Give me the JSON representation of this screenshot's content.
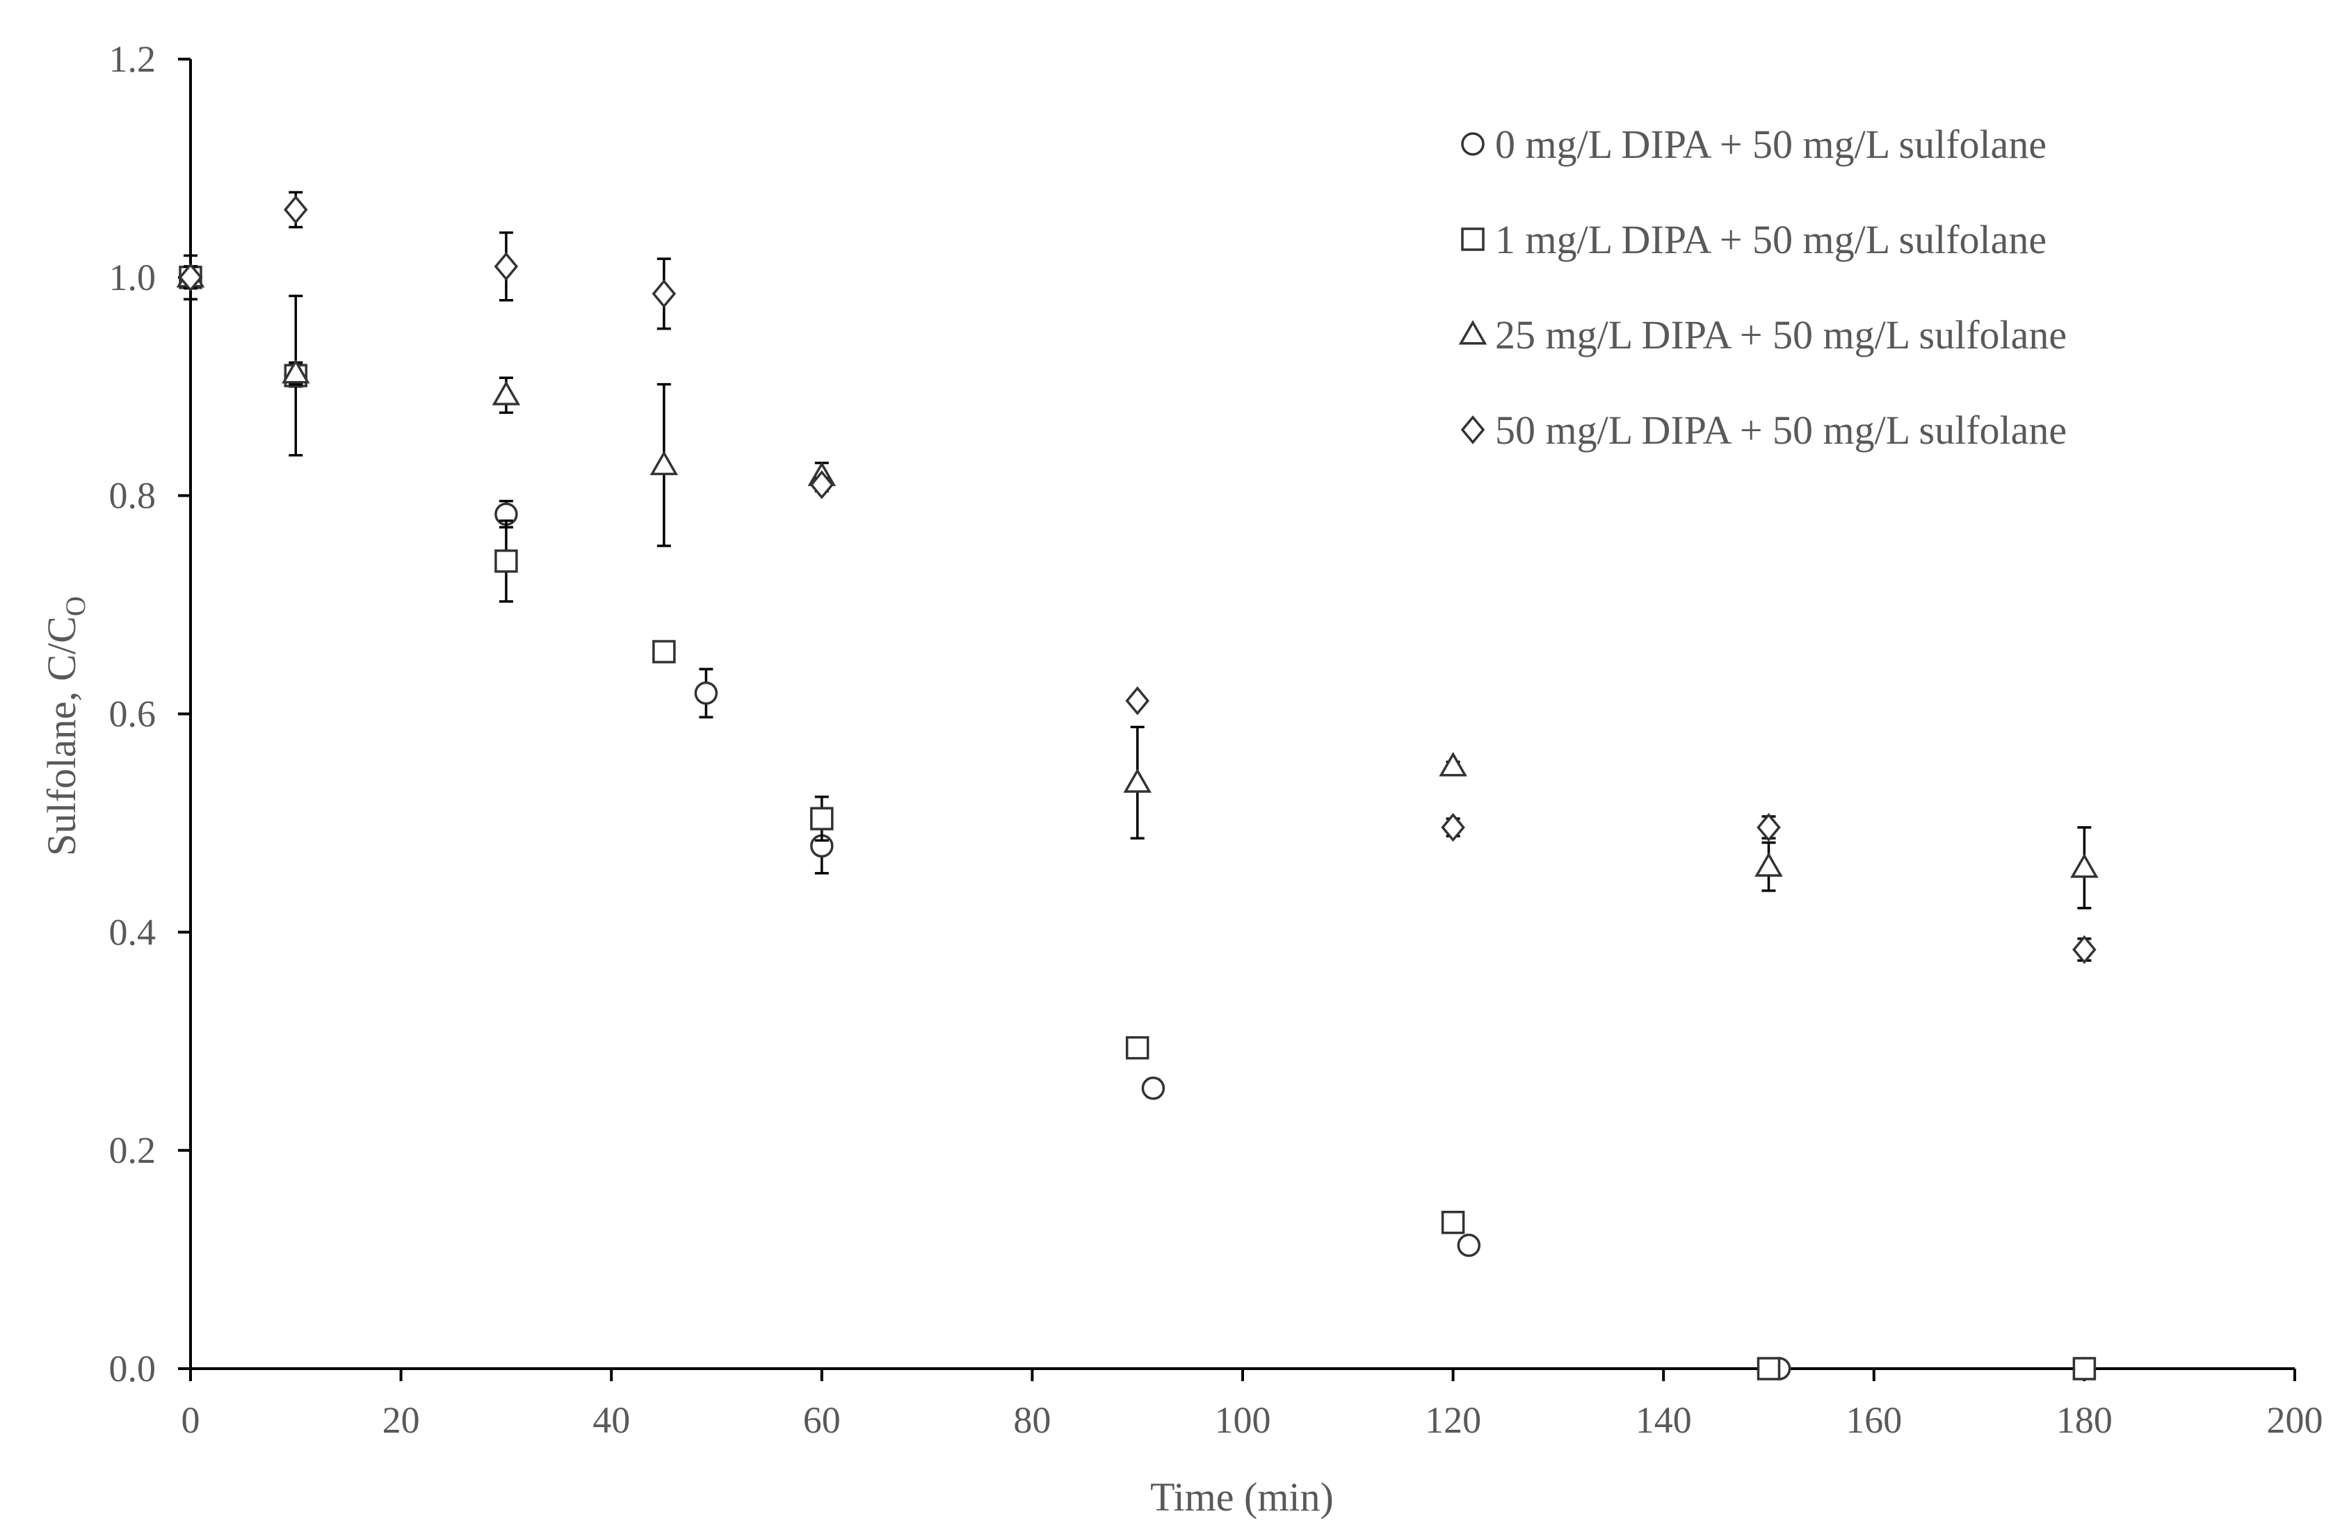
{
  "chart_data": {
    "type": "scatter",
    "xlabel": "Time (min)",
    "ylabel_main": "Sulfolane, C/C",
    "ylabel_sub": "O",
    "xlim": [
      0,
      200
    ],
    "ylim": [
      0,
      1.2
    ],
    "x_ticks": [
      0,
      20,
      40,
      60,
      80,
      100,
      120,
      140,
      160,
      180,
      200
    ],
    "y_ticks": [
      0,
      0.2,
      0.4,
      0.6,
      0.8,
      1.0,
      1.2
    ],
    "x_tick_labels": [
      "0",
      "20",
      "40",
      "60",
      "80",
      "100",
      "120",
      "140",
      "160",
      "180",
      "200"
    ],
    "y_tick_labels": [
      "0.0",
      "0.2",
      "0.4",
      "0.6",
      "0.8",
      "1.0",
      "1.2"
    ],
    "grid": false,
    "legend_position": "top-right",
    "series": [
      {
        "name": "0 mg/L DIPA + 50 mg/L sulfolane",
        "marker": "circle",
        "points": [
          {
            "x": 0,
            "y": 1.0,
            "err": 0.01
          },
          {
            "x": 10,
            "y": 0.91,
            "err": 0.01
          },
          {
            "x": 30,
            "y": 0.783,
            "err": 0.012
          },
          {
            "x": 49,
            "y": 0.619,
            "err": 0.022
          },
          {
            "x": 60,
            "y": 0.479,
            "err": 0.025
          },
          {
            "x": 91.5,
            "y": 0.257,
            "err": 0.008
          },
          {
            "x": 121.5,
            "y": 0.113,
            "err": 0.004
          },
          {
            "x": 151,
            "y": 0.0,
            "err": 0.0
          },
          {
            "x": 180,
            "y": 0.0,
            "err": 0.0
          }
        ]
      },
      {
        "name": "1 mg/L DIPA + 50 mg/L sulfolane",
        "marker": "square",
        "points": [
          {
            "x": 0,
            "y": 1.0,
            "err": 0.02
          },
          {
            "x": 10,
            "y": 0.91,
            "err": 0.073
          },
          {
            "x": 30,
            "y": 0.74,
            "err": 0.037
          },
          {
            "x": 45,
            "y": 0.657,
            "err": 0.006
          },
          {
            "x": 60,
            "y": 0.504,
            "err": 0.02
          },
          {
            "x": 90,
            "y": 0.294,
            "err": 0.004
          },
          {
            "x": 120,
            "y": 0.134,
            "err": 0.004
          },
          {
            "x": 150,
            "y": 0.0,
            "err": 0.0
          },
          {
            "x": 180,
            "y": 0.0,
            "err": 0.0
          }
        ]
      },
      {
        "name": "25 mg/L DIPA + 50 mg/L sulfolane",
        "marker": "triangle",
        "points": [
          {
            "x": 0,
            "y": 1.0,
            "err": 0.01
          },
          {
            "x": 10,
            "y": 0.912,
            "err": 0.01
          },
          {
            "x": 30,
            "y": 0.892,
            "err": 0.016
          },
          {
            "x": 45,
            "y": 0.828,
            "err": 0.074
          },
          {
            "x": 60,
            "y": 0.818,
            "err": 0.012
          },
          {
            "x": 90,
            "y": 0.537,
            "err": 0.051
          },
          {
            "x": 120,
            "y": 0.552,
            "err": 0.004
          },
          {
            "x": 150,
            "y": 0.46,
            "err": 0.022
          },
          {
            "x": 180,
            "y": 0.459,
            "err": 0.037
          }
        ]
      },
      {
        "name": "50 mg/L DIPA + 50 mg/L sulfolane",
        "marker": "diamond",
        "points": [
          {
            "x": 0,
            "y": 1.0,
            "err": 0.01
          },
          {
            "x": 10,
            "y": 1.062,
            "err": 0.016
          },
          {
            "x": 30,
            "y": 1.01,
            "err": 0.031
          },
          {
            "x": 45,
            "y": 0.985,
            "err": 0.032
          },
          {
            "x": 60,
            "y": 0.81,
            "err": 0.006
          },
          {
            "x": 90,
            "y": 0.612,
            "err": 0.004
          },
          {
            "x": 120,
            "y": 0.496,
            "err": 0.008
          },
          {
            "x": 150,
            "y": 0.496,
            "err": 0.01
          },
          {
            "x": 180,
            "y": 0.384,
            "err": 0.01
          }
        ]
      }
    ]
  }
}
